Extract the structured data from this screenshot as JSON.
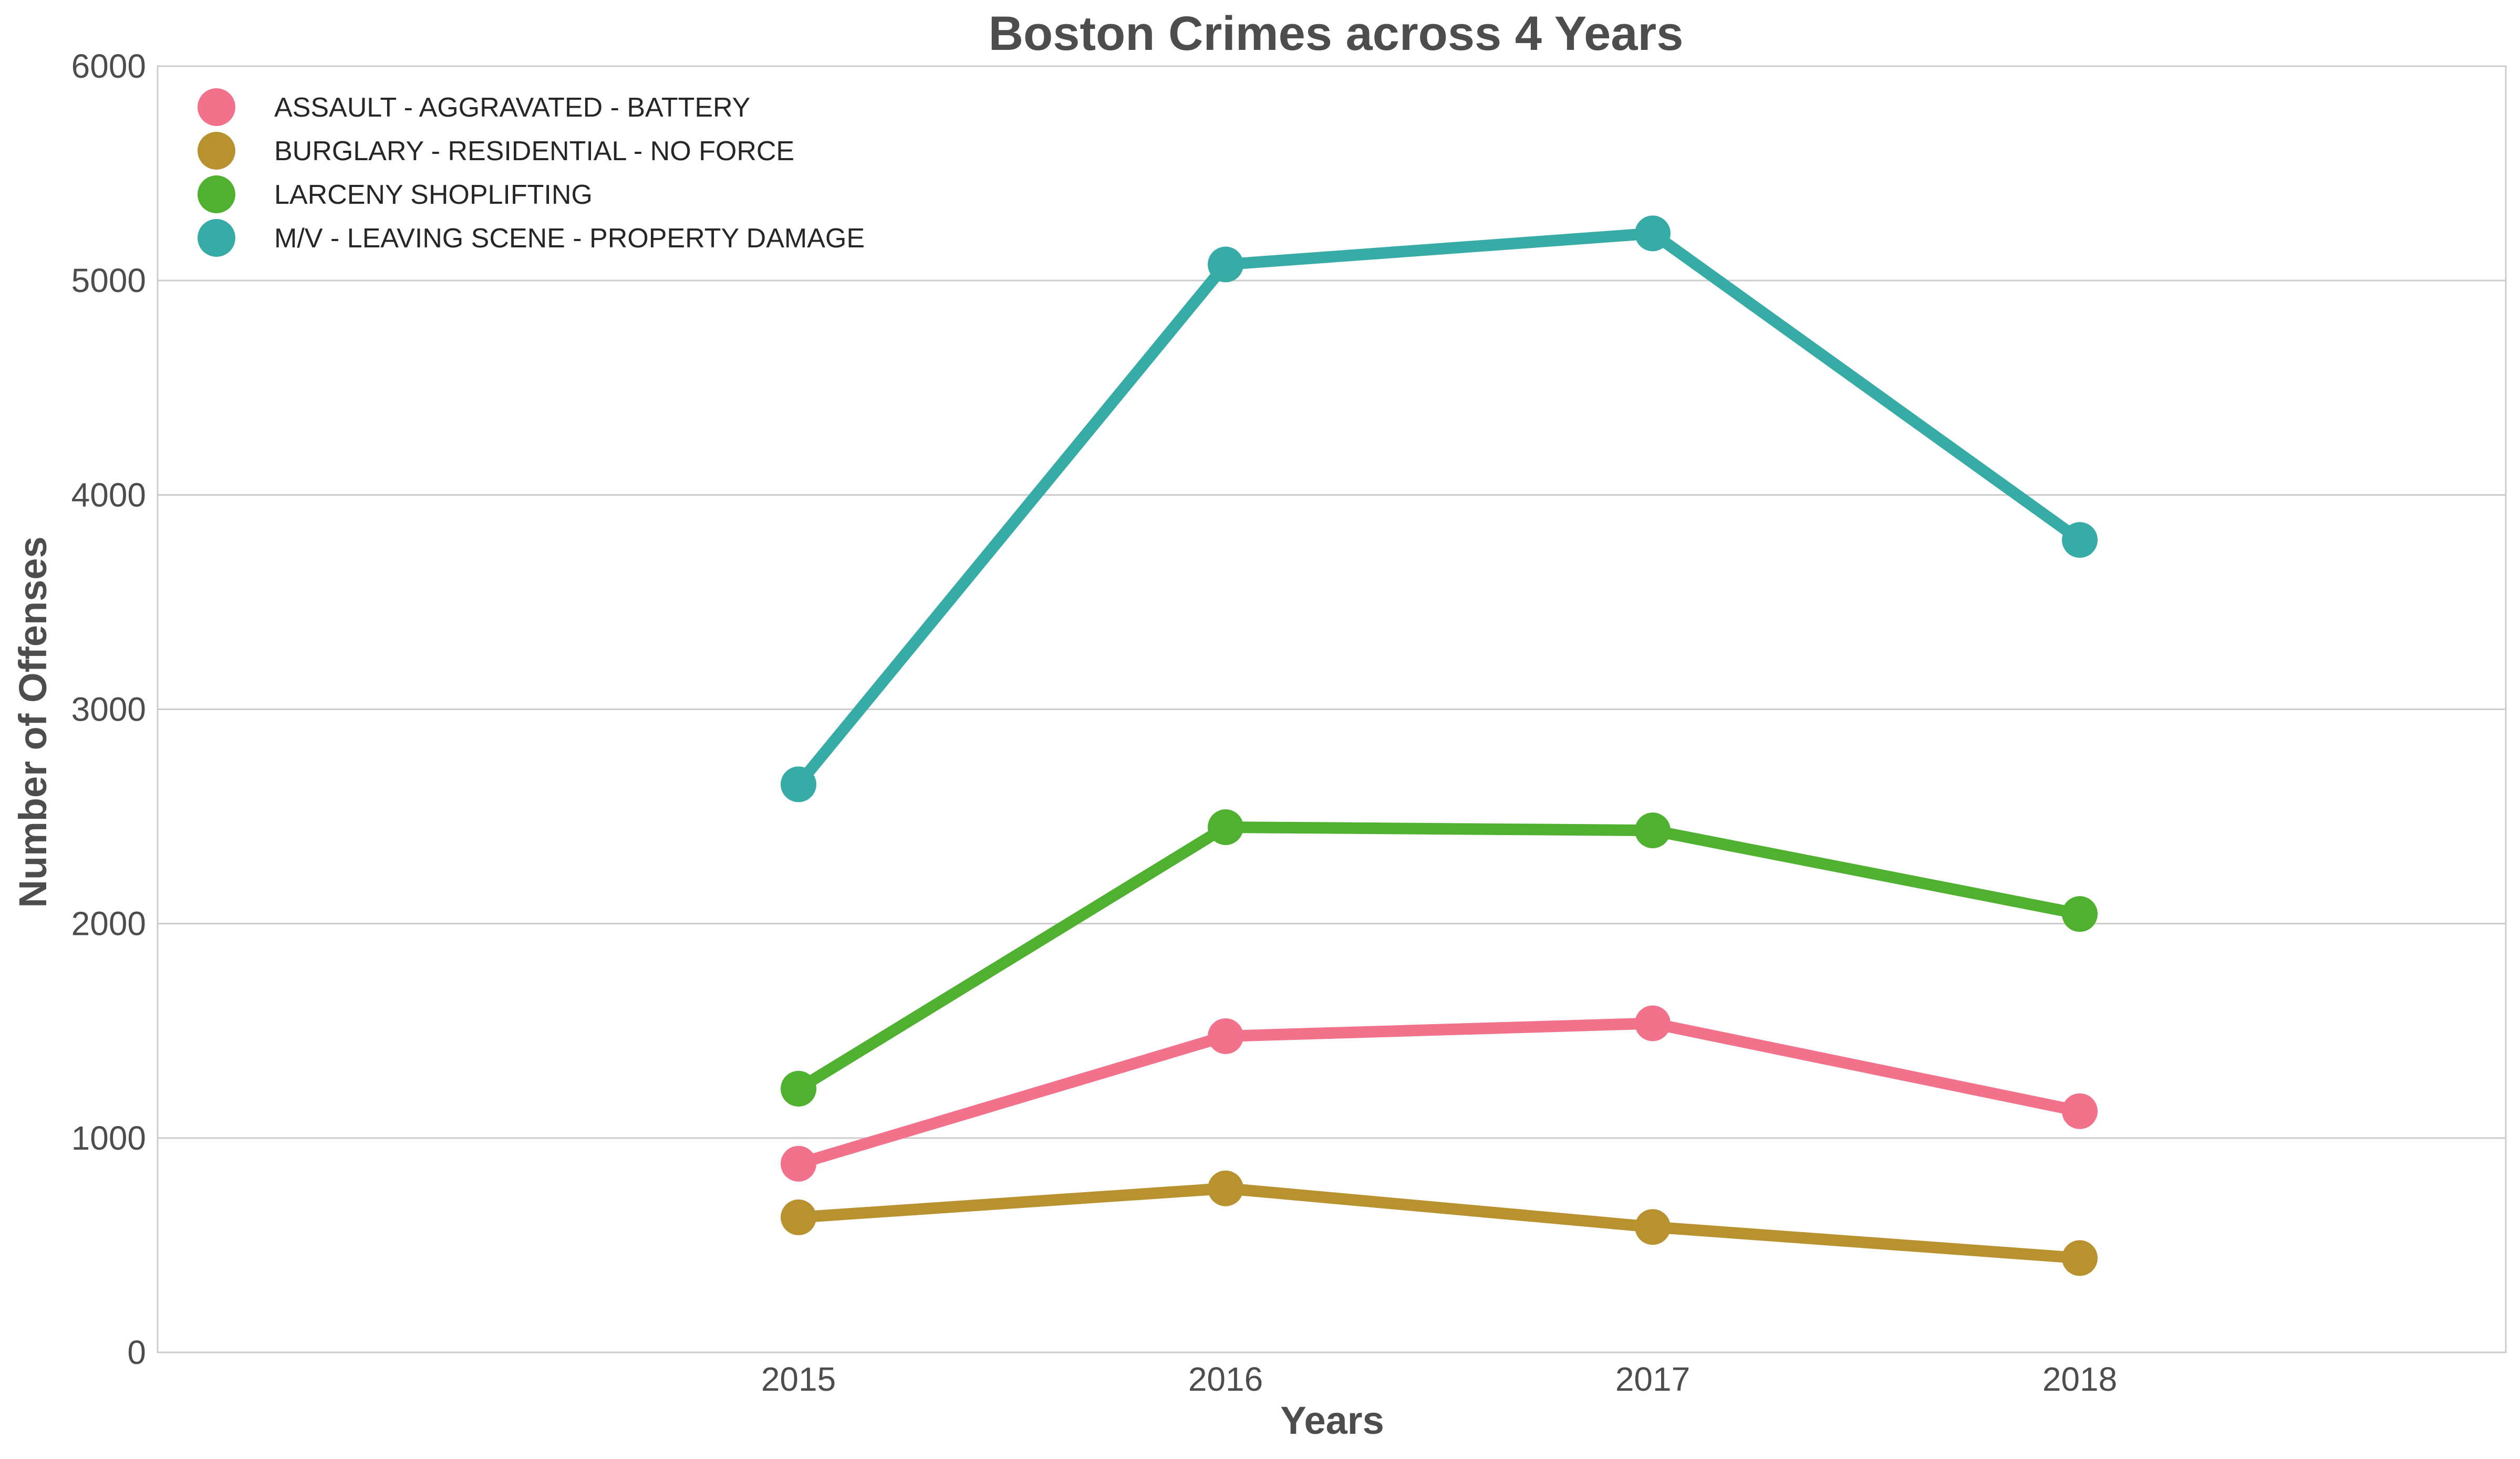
{
  "chart_data": {
    "type": "line",
    "title": "Boston Crimes across 4 Years",
    "xlabel": "Years",
    "ylabel": "Number of Offenses",
    "categories": [
      "2015",
      "2016",
      "2017",
      "2018"
    ],
    "ylim": [
      0,
      6000
    ],
    "yticks": [
      "0",
      "1000",
      "2000",
      "3000",
      "4000",
      "5000",
      "6000"
    ],
    "grid": "horizontal",
    "legend_position": "top-left",
    "series": [
      {
        "name": "ASSAULT - AGGRAVATED - BATTERY",
        "color": "#f2718b",
        "values": [
          880,
          1475,
          1535,
          1125
        ]
      },
      {
        "name": "BURGLARY - RESIDENTIAL - NO FORCE",
        "color": "#b8922f",
        "values": [
          630,
          765,
          585,
          440
        ]
      },
      {
        "name": "LARCENY SHOPLIFTING",
        "color": "#50b131",
        "values": [
          1230,
          2450,
          2435,
          2045
        ]
      },
      {
        "name": "M/V - LEAVING SCENE - PROPERTY DAMAGE",
        "color": "#37aba5",
        "values": [
          2650,
          5075,
          5220,
          3790
        ]
      }
    ]
  }
}
